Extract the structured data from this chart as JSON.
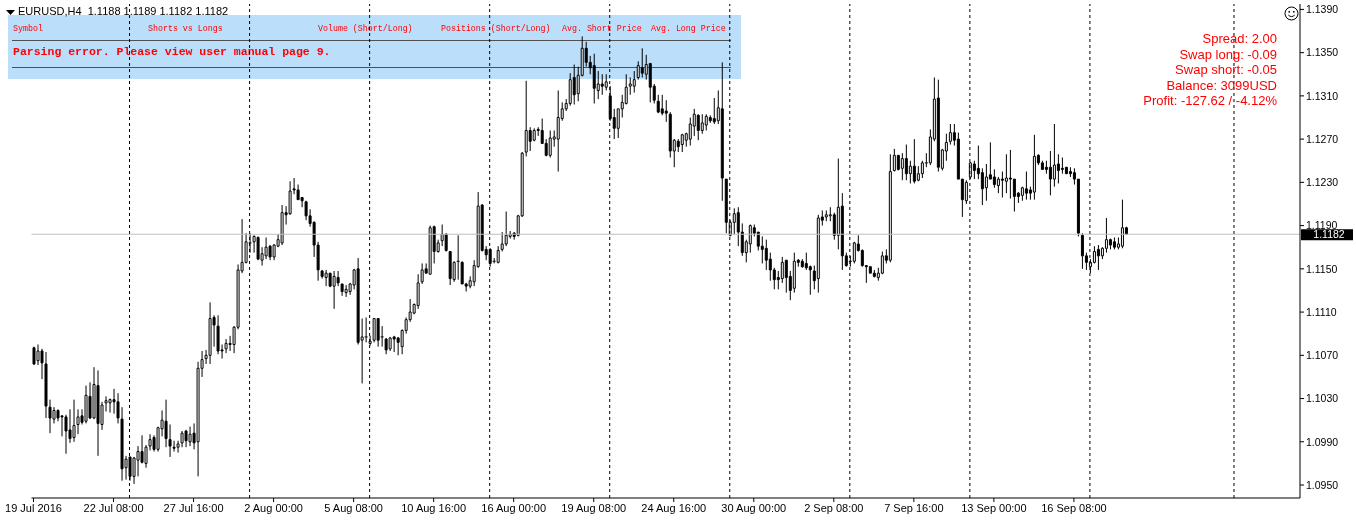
{
  "chart_data": {
    "type": "candlestick",
    "title": "EURUSD,H4  1.1188 1.1189 1.1182 1.1182",
    "categories": [
      "19 Jul 2016",
      null,
      null,
      null,
      null,
      null,
      null,
      null,
      null,
      null,
      null,
      null,
      null,
      null,
      null,
      null,
      null,
      null,
      null,
      null,
      "22 Jul 08:00",
      null,
      null,
      null,
      null,
      null,
      null,
      null,
      null,
      null,
      null,
      null,
      null,
      null,
      null,
      null,
      null,
      null,
      null,
      null,
      "27 Jul 16:00",
      null,
      null,
      null,
      null,
      null,
      null,
      null,
      null,
      null,
      null,
      null,
      null,
      null,
      null,
      null,
      null,
      null,
      null,
      null,
      "2 Aug 00:00",
      null,
      null,
      null,
      null,
      null,
      null,
      null,
      null,
      null,
      null,
      null,
      null,
      null,
      null,
      null,
      null,
      null,
      null,
      null,
      "5 Aug 08:00",
      null,
      null,
      null,
      null,
      null,
      null,
      null,
      null,
      null,
      null,
      null,
      null,
      null,
      null,
      null,
      null,
      null,
      null,
      null,
      "10 Aug 16:00",
      null,
      null,
      null,
      null,
      null,
      null,
      null,
      null,
      null,
      null,
      null,
      null,
      null,
      null,
      null,
      null,
      null,
      null,
      null,
      "16 Aug 00:00",
      null,
      null,
      null,
      null,
      null,
      null,
      null,
      null,
      null,
      null,
      null,
      null,
      null,
      null,
      null,
      null,
      null,
      null,
      null,
      "19 Aug 08:00",
      null,
      null,
      null,
      null,
      null,
      null,
      null,
      null,
      null,
      null,
      null,
      null,
      null,
      null,
      null,
      null,
      null,
      null,
      null,
      "24 Aug 16:00",
      null,
      null,
      null,
      null,
      null,
      null,
      null,
      null,
      null,
      null,
      null,
      null,
      null,
      null,
      null,
      null,
      null,
      null,
      null,
      "30 Aug 00:00",
      null,
      null,
      null,
      null,
      null,
      null,
      null,
      null,
      null,
      null,
      null,
      null,
      null,
      null,
      null,
      null,
      null,
      null,
      null,
      "2 Sep 08:00",
      null,
      null,
      null,
      null,
      null,
      null,
      null,
      null,
      null,
      null,
      null,
      null,
      null,
      null,
      null,
      null,
      null,
      null,
      null,
      "7 Sep 16:00",
      null,
      null,
      null,
      null,
      null,
      null,
      null,
      null,
      null,
      null,
      null,
      null,
      null,
      null,
      null,
      null,
      null,
      null,
      null,
      "13 Sep 00:00",
      null,
      null,
      null,
      null,
      null,
      null,
      null,
      null,
      null,
      null,
      null,
      null,
      null,
      null,
      null,
      null,
      null,
      null,
      null,
      "16 Sep 08:00",
      null,
      null,
      null,
      null,
      null,
      null,
      null,
      null,
      null,
      null,
      null,
      null,
      null,
      null,
      null,
      null,
      null,
      null,
      null,
      null,
      null,
      null,
      null,
      null,
      null,
      null,
      null,
      null,
      null,
      null,
      null,
      null,
      null,
      null,
      null,
      null,
      null,
      null,
      null,
      null,
      null,
      null,
      null,
      null,
      null,
      null,
      null,
      null,
      null,
      null,
      null,
      null,
      null,
      null,
      null,
      null
    ],
    "ohlc": [
      [
        1.1077,
        1.1078,
        1.1061,
        1.1062
      ],
      [
        1.1065,
        1.108,
        1.1061,
        1.1074
      ],
      [
        1.1074,
        1.1076,
        1.1048,
        1.1063
      ],
      [
        1.1062,
        1.1073,
        1.1012,
        1.1023
      ],
      [
        1.1022,
        1.1029,
        1.0998,
        1.1012
      ],
      [
        1.1011,
        1.1022,
        1.1007,
        1.1019
      ],
      [
        1.1019,
        1.102,
        1.1009,
        1.1012
      ],
      [
        1.1014,
        1.1014,
        1.0995,
        1.1013
      ],
      [
        1.1013,
        1.1015,
        1.0979,
        1.1
      ],
      [
        1.1001,
        1.102,
        1.0989,
        1.0993
      ],
      [
        1.0994,
        1.1029,
        1.099,
        1.1005
      ],
      [
        1.1006,
        1.102,
        1.0997,
        1.1013
      ],
      [
        1.1014,
        1.102,
        1.1006,
        1.1008
      ],
      [
        1.1009,
        1.1042,
        1.1007,
        1.1033
      ],
      [
        1.1032,
        1.1045,
        1.1011,
        1.1012
      ],
      [
        1.1012,
        1.1059,
        1.1011,
        1.1043
      ],
      [
        1.1042,
        1.1056,
        1.0977,
        1.1007
      ],
      [
        1.1006,
        1.1027,
        1.1001,
        1.1024
      ],
      [
        1.1026,
        1.1032,
        1.1018,
        1.1028
      ],
      [
        1.1026,
        1.103,
        1.1017,
        1.1029
      ],
      [
        1.1029,
        1.1039,
        1.1016,
        1.1027
      ],
      [
        1.1027,
        1.1035,
        1.1007,
        1.1012
      ],
      [
        1.1011,
        1.1022,
        1.0954,
        1.0965
      ],
      [
        1.0966,
        1.0977,
        1.0955,
        1.0974
      ],
      [
        1.0976,
        1.0976,
        1.0954,
        1.0958
      ],
      [
        1.0958,
        1.0976,
        1.0951,
        1.0975
      ],
      [
        1.0973,
        1.0986,
        1.0958,
        1.0981
      ],
      [
        1.0981,
        1.0996,
        1.097,
        1.0971
      ],
      [
        1.097,
        1.0987,
        1.0966,
        1.0985
      ],
      [
        1.0986,
        1.0997,
        1.0982,
        1.0992
      ],
      [
        1.0994,
        1.0996,
        1.0981,
        1.0983
      ],
      [
        1.0983,
        1.1004,
        1.0981,
        1.1003
      ],
      [
        1.1002,
        1.1019,
        1.0995,
        1.101
      ],
      [
        1.1009,
        1.1029,
        1.0985,
        1.0993
      ],
      [
        1.0992,
        1.1006,
        1.0976,
        1.0986
      ],
      [
        1.0985,
        1.0991,
        1.0981,
        1.0984
      ],
      [
        1.0985,
        1.0991,
        1.098,
        1.0988
      ],
      [
        1.0989,
        1.1,
        1.0985,
        1.0998
      ],
      [
        1.1,
        1.1001,
        1.0985,
        1.0991
      ],
      [
        1.099,
        1.1004,
        1.0986,
        1.0997
      ],
      [
        1.0998,
        1.1007,
        1.0983,
        1.0989
      ],
      [
        1.099,
        1.1064,
        1.0958,
        1.1058
      ],
      [
        1.1058,
        1.1074,
        1.105,
        1.1066
      ],
      [
        1.1067,
        1.1075,
        1.1062,
        1.107
      ],
      [
        1.107,
        1.1119,
        1.1062,
        1.1104
      ],
      [
        1.1105,
        1.1107,
        1.1078,
        1.1098
      ],
      [
        1.1097,
        1.1107,
        1.1071,
        1.1074
      ],
      [
        1.1075,
        1.108,
        1.1067,
        1.1074
      ],
      [
        1.1076,
        1.1085,
        1.1072,
        1.1081
      ],
      [
        1.1081,
        1.1088,
        1.1074,
        1.108
      ],
      [
        1.108,
        1.1097,
        1.1072,
        1.1096
      ],
      [
        1.1096,
        1.1154,
        1.1094,
        1.1149
      ],
      [
        1.1148,
        1.1196,
        1.1146,
        1.1156
      ],
      [
        1.1156,
        1.1183,
        1.1155,
        1.1175
      ],
      [
        1.1174,
        1.1183,
        1.1165,
        1.1174
      ],
      [
        1.1175,
        1.1181,
        1.1165,
        1.118
      ],
      [
        1.1179,
        1.118,
        1.1158,
        1.1159
      ],
      [
        1.1158,
        1.117,
        1.1153,
        1.1164
      ],
      [
        1.1162,
        1.1179,
        1.1159,
        1.117
      ],
      [
        1.1171,
        1.1172,
        1.1158,
        1.1161
      ],
      [
        1.1161,
        1.1173,
        1.1158,
        1.1172
      ],
      [
        1.1171,
        1.1182,
        1.117,
        1.1177
      ],
      [
        1.1174,
        1.1209,
        1.1172,
        1.1202
      ],
      [
        1.1202,
        1.1208,
        1.1191,
        1.12
      ],
      [
        1.1201,
        1.1231,
        1.12,
        1.1222
      ],
      [
        1.1224,
        1.1234,
        1.1219,
        1.1223
      ],
      [
        1.1223,
        1.1228,
        1.1214,
        1.1214
      ],
      [
        1.1216,
        1.1216,
        1.1207,
        1.1213
      ],
      [
        1.1212,
        1.1213,
        1.1195,
        1.1199
      ],
      [
        1.1199,
        1.1205,
        1.1189,
        1.1192
      ],
      [
        1.1193,
        1.1194,
        1.1161,
        1.1172
      ],
      [
        1.1172,
        1.1175,
        1.1139,
        1.1149
      ],
      [
        1.1148,
        1.1149,
        1.1141,
        1.1143
      ],
      [
        1.1142,
        1.1149,
        1.1134,
        1.1146
      ],
      [
        1.1146,
        1.1146,
        1.1133,
        1.1134
      ],
      [
        1.1134,
        1.1148,
        1.1113,
        1.1143
      ],
      [
        1.1142,
        1.1148,
        1.1134,
        1.1137
      ],
      [
        1.1136,
        1.1136,
        1.1125,
        1.1129
      ],
      [
        1.1128,
        1.1135,
        1.1124,
        1.1131
      ],
      [
        1.1129,
        1.1137,
        1.1126,
        1.1136
      ],
      [
        1.1135,
        1.115,
        1.1131,
        1.1149
      ],
      [
        1.115,
        1.116,
        1.108,
        1.1082
      ],
      [
        1.1084,
        1.1104,
        1.1044,
        1.1087
      ],
      [
        1.1087,
        1.1105,
        1.1082,
        1.1087
      ],
      [
        1.1081,
        1.1088,
        1.1079,
        1.1083
      ],
      [
        1.1084,
        1.1104,
        1.1082,
        1.1104
      ],
      [
        1.1104,
        1.1104,
        1.1078,
        1.1084
      ],
      [
        1.1087,
        1.1097,
        1.1078,
        1.1087
      ],
      [
        1.1085,
        1.1086,
        1.1071,
        1.1075
      ],
      [
        1.1076,
        1.1087,
        1.1074,
        1.1086
      ],
      [
        1.1087,
        1.1088,
        1.1073,
        1.1085
      ],
      [
        1.1086,
        1.1087,
        1.107,
        1.1082
      ],
      [
        1.1078,
        1.1094,
        1.1071,
        1.1093
      ],
      [
        1.1093,
        1.1105,
        1.109,
        1.1103
      ],
      [
        1.1103,
        1.1122,
        1.1101,
        1.111
      ],
      [
        1.1109,
        1.1118,
        1.1108,
        1.1117
      ],
      [
        1.1116,
        1.1145,
        1.1113,
        1.1137
      ],
      [
        1.1138,
        1.1155,
        1.1136,
        1.1149
      ],
      [
        1.115,
        1.1155,
        1.1146,
        1.1146
      ],
      [
        1.1145,
        1.119,
        1.1145,
        1.1188
      ],
      [
        1.1189,
        1.119,
        1.1155,
        1.1166
      ],
      [
        1.1166,
        1.1177,
        1.1165,
        1.1174
      ],
      [
        1.1176,
        1.1191,
        1.1171,
        1.1182
      ],
      [
        1.1182,
        1.1183,
        1.1166,
        1.1167
      ],
      [
        1.1166,
        1.1166,
        1.1135,
        1.1141
      ],
      [
        1.114,
        1.1157,
        1.1138,
        1.1156
      ],
      [
        1.1157,
        1.1181,
        1.114,
        1.1157
      ],
      [
        1.1156,
        1.1157,
        1.1136,
        1.1136
      ],
      [
        1.1136,
        1.1137,
        1.1129,
        1.1134
      ],
      [
        1.1134,
        1.1143,
        1.1132,
        1.1139
      ],
      [
        1.1138,
        1.1158,
        1.1134,
        1.1153
      ],
      [
        1.1152,
        1.1221,
        1.1151,
        1.1208
      ],
      [
        1.1209,
        1.121,
        1.1166,
        1.1167
      ],
      [
        1.1168,
        1.1171,
        1.1158,
        1.1163
      ],
      [
        1.1168,
        1.1169,
        1.1152,
        1.1155
      ],
      [
        1.1157,
        1.116,
        1.1155,
        1.1157
      ],
      [
        1.1156,
        1.1171,
        1.1155,
        1.1167
      ],
      [
        1.1168,
        1.1184,
        1.1166,
        1.1173
      ],
      [
        1.1173,
        1.1203,
        1.1171,
        1.1181
      ],
      [
        1.118,
        1.1185,
        1.1178,
        1.1182
      ],
      [
        1.1183,
        1.1184,
        1.1177,
        1.118
      ],
      [
        1.1181,
        1.12,
        1.118,
        1.1199
      ],
      [
        1.1199,
        1.1258,
        1.1198,
        1.1257
      ],
      [
        1.1258,
        1.1324,
        1.1254,
        1.1278
      ],
      [
        1.1278,
        1.1281,
        1.1259,
        1.1268
      ],
      [
        1.1269,
        1.128,
        1.1268,
        1.1278
      ],
      [
        1.1279,
        1.1281,
        1.1273,
        1.1278
      ],
      [
        1.1278,
        1.1289,
        1.1266,
        1.1266
      ],
      [
        1.1266,
        1.127,
        1.1254,
        1.1255
      ],
      [
        1.1255,
        1.1278,
        1.1253,
        1.1271
      ],
      [
        1.127,
        1.1278,
        1.1263,
        1.1272
      ],
      [
        1.127,
        1.1315,
        1.124,
        1.129
      ],
      [
        1.1289,
        1.1304,
        1.1287,
        1.1298
      ],
      [
        1.1298,
        1.1307,
        1.1296,
        1.1303
      ],
      [
        1.1303,
        1.1331,
        1.1301,
        1.1325
      ],
      [
        1.1327,
        1.1339,
        1.1302,
        1.1311
      ],
      [
        1.1312,
        1.1337,
        1.1305,
        1.1329
      ],
      [
        1.1329,
        1.1365,
        1.1328,
        1.1354
      ],
      [
        1.1354,
        1.136,
        1.1337,
        1.1341
      ],
      [
        1.1341,
        1.1347,
        1.133,
        1.1336
      ],
      [
        1.1338,
        1.1349,
        1.1303,
        1.1317
      ],
      [
        1.1315,
        1.1333,
        1.1307,
        1.1321
      ],
      [
        1.1321,
        1.133,
        1.1311,
        1.1319
      ],
      [
        1.1318,
        1.133,
        1.1315,
        1.1323
      ],
      [
        1.131,
        1.1319,
        1.1287,
        1.1289
      ],
      [
        1.129,
        1.1298,
        1.127,
        1.128
      ],
      [
        1.128,
        1.1298,
        1.1271,
        1.1298
      ],
      [
        1.1298,
        1.1311,
        1.129,
        1.1304
      ],
      [
        1.1303,
        1.133,
        1.1302,
        1.1318
      ],
      [
        1.1319,
        1.1327,
        1.1311,
        1.1321
      ],
      [
        1.1319,
        1.1333,
        1.1313,
        1.1325
      ],
      [
        1.1327,
        1.1342,
        1.1325,
        1.1338
      ],
      [
        1.1336,
        1.1354,
        1.1327,
        1.1331
      ],
      [
        1.133,
        1.1348,
        1.1325,
        1.1339
      ],
      [
        1.134,
        1.134,
        1.1304,
        1.1318
      ],
      [
        1.1319,
        1.1321,
        1.1303,
        1.1306
      ],
      [
        1.1305,
        1.1311,
        1.1294,
        1.1295
      ],
      [
        1.1298,
        1.1311,
        1.1292,
        1.1294
      ],
      [
        1.1296,
        1.1306,
        1.1286,
        1.1294
      ],
      [
        1.1293,
        1.1295,
        1.1253,
        1.1259
      ],
      [
        1.1259,
        1.127,
        1.1244,
        1.1269
      ],
      [
        1.1268,
        1.127,
        1.1258,
        1.1263
      ],
      [
        1.1265,
        1.1275,
        1.1258,
        1.1274
      ],
      [
        1.1269,
        1.1276,
        1.1263,
        1.1275
      ],
      [
        1.127,
        1.129,
        1.1264,
        1.1284
      ],
      [
        1.1282,
        1.1298,
        1.1273,
        1.1293
      ],
      [
        1.1292,
        1.1293,
        1.1269,
        1.1278
      ],
      [
        1.1278,
        1.1293,
        1.1275,
        1.1285
      ],
      [
        1.1283,
        1.1293,
        1.1278,
        1.1291
      ],
      [
        1.129,
        1.1292,
        1.1285,
        1.1287
      ],
      [
        1.1289,
        1.1308,
        1.1284,
        1.1286
      ],
      [
        1.1287,
        1.1315,
        1.1284,
        1.1299
      ],
      [
        1.1298,
        1.1341,
        1.1213,
        1.1234
      ],
      [
        1.1233,
        1.1233,
        1.1183,
        1.1193
      ],
      [
        1.1181,
        1.1195,
        1.118,
        1.1193
      ],
      [
        1.1193,
        1.1206,
        1.1182,
        1.1201
      ],
      [
        1.1202,
        1.1207,
        1.1171,
        1.1184
      ],
      [
        1.1184,
        1.1192,
        1.1162,
        1.1165
      ],
      [
        1.1165,
        1.1177,
        1.1156,
        1.1175
      ],
      [
        1.1173,
        1.1191,
        1.1165,
        1.119
      ],
      [
        1.1188,
        1.1191,
        1.118,
        1.1183
      ],
      [
        1.1184,
        1.1184,
        1.1167,
        1.1171
      ],
      [
        1.1171,
        1.118,
        1.1155,
        1.1168
      ],
      [
        1.1169,
        1.1177,
        1.1149,
        1.1158
      ],
      [
        1.1159,
        1.1165,
        1.1139,
        1.1149
      ],
      [
        1.1149,
        1.1151,
        1.1131,
        1.114
      ],
      [
        1.1142,
        1.1148,
        1.1131,
        1.114
      ],
      [
        1.1141,
        1.1161,
        1.1137,
        1.1156
      ],
      [
        1.1158,
        1.1158,
        1.1128,
        1.1142
      ],
      [
        1.1143,
        1.1148,
        1.1121,
        1.113
      ],
      [
        1.1132,
        1.1165,
        1.1128,
        1.1157
      ],
      [
        1.1158,
        1.1159,
        1.1152,
        1.1156
      ],
      [
        1.1157,
        1.1159,
        1.1151,
        1.1152
      ],
      [
        1.1155,
        1.1165,
        1.1149,
        1.1151
      ],
      [
        1.1152,
        1.1153,
        1.1126,
        1.1149
      ],
      [
        1.1148,
        1.1153,
        1.1131,
        1.1139
      ],
      [
        1.1141,
        1.12,
        1.1128,
        1.1197
      ],
      [
        1.1198,
        1.1204,
        1.119,
        1.1195
      ],
      [
        1.1198,
        1.1204,
        1.1194,
        1.12
      ],
      [
        1.1199,
        1.1207,
        1.1194,
        1.12
      ],
      [
        1.12,
        1.1202,
        1.1177,
        1.1181
      ],
      [
        1.1181,
        1.1252,
        1.1168,
        1.1207
      ],
      [
        1.1208,
        1.122,
        1.1149,
        1.1162
      ],
      [
        1.1162,
        1.1165,
        1.1152,
        1.1153
      ],
      [
        1.1157,
        1.1162,
        1.1152,
        1.1157
      ],
      [
        1.1157,
        1.1175,
        1.1155,
        1.1174
      ],
      [
        1.1173,
        1.1181,
        1.1166,
        1.1167
      ],
      [
        1.1167,
        1.1168,
        1.1152,
        1.1153
      ],
      [
        1.1153,
        1.1153,
        1.1137,
        1.1152
      ],
      [
        1.1152,
        1.1152,
        1.1146,
        1.1146
      ],
      [
        1.1146,
        1.1149,
        1.1142,
        1.1143
      ],
      [
        1.1142,
        1.1151,
        1.1139,
        1.1146
      ],
      [
        1.1146,
        1.1166,
        1.1145,
        1.1162
      ],
      [
        1.1162,
        1.1168,
        1.1155,
        1.1158
      ],
      [
        1.1158,
        1.1256,
        1.1156,
        1.124
      ],
      [
        1.1241,
        1.1261,
        1.124,
        1.1255
      ],
      [
        1.1255,
        1.1255,
        1.1241,
        1.1242
      ],
      [
        1.1243,
        1.1257,
        1.1232,
        1.1252
      ],
      [
        1.1252,
        1.1265,
        1.1232,
        1.1238
      ],
      [
        1.1238,
        1.125,
        1.1229,
        1.1245
      ],
      [
        1.1245,
        1.127,
        1.1229,
        1.1231
      ],
      [
        1.1232,
        1.1245,
        1.1231,
        1.1238
      ],
      [
        1.1238,
        1.125,
        1.1234,
        1.1248
      ],
      [
        1.1248,
        1.1257,
        1.1244,
        1.1248
      ],
      [
        1.1248,
        1.1279,
        1.1246,
        1.1272
      ],
      [
        1.127,
        1.1327,
        1.1268,
        1.1307
      ],
      [
        1.1308,
        1.1325,
        1.124,
        1.1244
      ],
      [
        1.1243,
        1.1261,
        1.1241,
        1.126
      ],
      [
        1.1259,
        1.1275,
        1.125,
        1.1267
      ],
      [
        1.1268,
        1.1284,
        1.1265,
        1.1276
      ],
      [
        1.1276,
        1.1284,
        1.1264,
        1.1269
      ],
      [
        1.127,
        1.1276,
        1.1233,
        1.1233
      ],
      [
        1.1233,
        1.1233,
        1.1198,
        1.1214
      ],
      [
        1.1213,
        1.1232,
        1.121,
        1.123
      ],
      [
        1.1235,
        1.1249,
        1.1233,
        1.1248
      ],
      [
        1.1247,
        1.125,
        1.1233,
        1.1241
      ],
      [
        1.1243,
        1.1264,
        1.1233,
        1.1238
      ],
      [
        1.1239,
        1.1243,
        1.1209,
        1.1224
      ],
      [
        1.1225,
        1.1247,
        1.1213,
        1.1235
      ],
      [
        1.1237,
        1.1267,
        1.1233,
        1.1233
      ],
      [
        1.1235,
        1.1242,
        1.1225,
        1.1228
      ],
      [
        1.1227,
        1.1235,
        1.122,
        1.1233
      ],
      [
        1.1233,
        1.124,
        1.1216,
        1.1232
      ],
      [
        1.1231,
        1.1256,
        1.122,
        1.1234
      ],
      [
        1.1234,
        1.126,
        1.1215,
        1.1233
      ],
      [
        1.1233,
        1.1233,
        1.1203,
        1.1217
      ],
      [
        1.122,
        1.1221,
        1.1211,
        1.1217
      ],
      [
        1.1218,
        1.1226,
        1.1213,
        1.1225
      ],
      [
        1.1224,
        1.124,
        1.1214,
        1.122
      ],
      [
        1.1223,
        1.1226,
        1.1214,
        1.122
      ],
      [
        1.1221,
        1.1274,
        1.1214,
        1.1254
      ],
      [
        1.1255,
        1.1256,
        1.1246,
        1.1248
      ],
      [
        1.1248,
        1.125,
        1.1242,
        1.1242
      ],
      [
        1.1244,
        1.125,
        1.1238,
        1.1242
      ],
      [
        1.1244,
        1.1259,
        1.1218,
        1.1233
      ],
      [
        1.1233,
        1.1284,
        1.1226,
        1.1246
      ],
      [
        1.1247,
        1.1256,
        1.1229,
        1.1241
      ],
      [
        1.1243,
        1.1253,
        1.1238,
        1.1242
      ],
      [
        1.1244,
        1.1244,
        1.1238,
        1.1238
      ],
      [
        1.124,
        1.1244,
        1.1235,
        1.1238
      ],
      [
        1.1239,
        1.1243,
        1.1228,
        1.1233
      ],
      [
        1.1233,
        1.1233,
        1.118,
        1.1183
      ],
      [
        1.1181,
        1.1183,
        1.115,
        1.1162
      ],
      [
        1.1162,
        1.1165,
        1.1149,
        1.1156
      ],
      [
        1.1152,
        1.1159,
        1.1146,
        1.1156
      ],
      [
        1.1156,
        1.1171,
        1.1155,
        1.1166
      ],
      [
        1.1168,
        1.1172,
        1.1149,
        1.1162
      ],
      [
        1.1162,
        1.117,
        1.1159,
        1.1169
      ],
      [
        1.1169,
        1.1197,
        1.1165,
        1.1177
      ],
      [
        1.1177,
        1.1178,
        1.1168,
        1.1172
      ],
      [
        1.1175,
        1.1179,
        1.1168,
        1.117
      ],
      [
        1.117,
        1.1179,
        1.1168,
        1.1173
      ],
      [
        1.1171,
        1.1214,
        1.1169,
        1.1188
      ],
      [
        1.1188,
        1.1189,
        1.1182,
        1.1182
      ],
      null,
      null,
      null,
      null,
      null,
      null,
      null,
      null,
      null,
      null,
      null,
      null,
      null,
      null,
      null,
      null,
      null,
      null,
      null,
      null,
      null,
      null,
      null,
      null,
      null,
      null,
      null,
      null,
      null,
      null,
      null,
      null,
      null,
      null,
      null,
      null,
      null,
      null,
      null,
      null,
      null,
      null,
      null
    ],
    "color": "#000000",
    "ylim": [
      1.0938,
      1.1395
    ],
    "yticks": [
      {
        "value": 1.095,
        "label": "1.0950"
      },
      {
        "value": 1.099,
        "label": "1.0990"
      },
      {
        "value": 1.103,
        "label": "1.1030"
      },
      {
        "value": 1.107,
        "label": "1.1070"
      },
      {
        "value": 1.111,
        "label": "1.1110"
      },
      {
        "value": 1.115,
        "label": "1.1150"
      },
      {
        "value": 1.119,
        "label": "1.1190"
      },
      {
        "value": 1.123,
        "label": "1.1230"
      },
      {
        "value": 1.127,
        "label": "1.1270"
      },
      {
        "value": 1.131,
        "label": "1.1310"
      },
      {
        "value": 1.135,
        "label": "1.1350"
      },
      {
        "value": 1.139,
        "label": "1.1390"
      }
    ],
    "ref_lines": [
      {
        "axis": "y",
        "value": 1.1182,
        "label": "1.1182",
        "color": "#c0c0c0"
      }
    ],
    "annotations": [
      "Symbol",
      "Shorts vs Longs",
      "Volume (Short/Long)",
      "Positions (Short/Long)",
      "Avg. Short Price",
      "Avg. Long Price",
      "Parsing error. Please view user manual page 9.",
      "Spread: 2.00",
      "Swap long: -0.09",
      "Swap short: -0.05",
      "Balance: 3099USD",
      "Profit: -127.62 / -4.12%"
    ]
  }
}
